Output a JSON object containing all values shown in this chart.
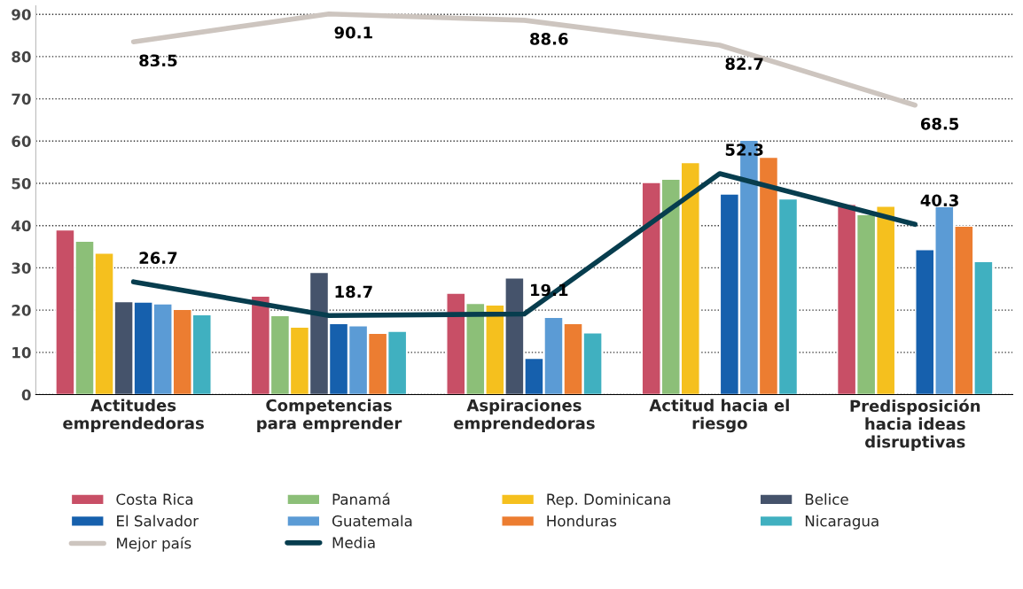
{
  "chart_data": {
    "type": "bar",
    "categories": [
      "Actitudes\nemprendedoras",
      "Competencias\npara emprender",
      "Aspiraciones\nemprendedoras",
      "Actitud hacia el\nriesgo",
      "Predisposición\nhacia ideas\ndisruptivas"
    ],
    "series": [
      {
        "name": "Costa Rica",
        "color": "#c84f66",
        "values": [
          39,
          23.3,
          24,
          50.2,
          45
        ]
      },
      {
        "name": "Panamá",
        "color": "#8cbf78",
        "values": [
          36.3,
          18.7,
          21.6,
          51,
          42.6
        ]
      },
      {
        "name": "Rep. Dominicana",
        "color": "#f5c01e",
        "values": [
          33.5,
          16,
          21.2,
          54.9,
          44.6
        ]
      },
      {
        "name": "Belice",
        "color": "#45536b",
        "values": [
          22,
          28.9,
          27.6,
          null,
          null
        ]
      },
      {
        "name": "El Salvador",
        "color": "#1660ad",
        "values": [
          21.9,
          16.8,
          8.6,
          47.5,
          34.3
        ]
      },
      {
        "name": "Guatemala",
        "color": "#5b9bd5",
        "values": [
          21.5,
          16.3,
          18.3,
          60.2,
          44.5
        ]
      },
      {
        "name": "Honduras",
        "color": "#ec7d31",
        "values": [
          20.2,
          14.5,
          16.8,
          56.2,
          39.9
        ]
      },
      {
        "name": "Nicaragua",
        "color": "#40b0c0",
        "values": [
          18.9,
          15,
          14.6,
          46.3,
          31.5
        ]
      },
      {
        "name": "Mejor país",
        "type": "line",
        "color": "#cdc5bf",
        "values": [
          83.5,
          90.1,
          88.6,
          82.7,
          68.5
        ],
        "data_labels": true
      },
      {
        "name": "Media",
        "type": "line",
        "color": "#073d4e",
        "values": [
          26.7,
          18.7,
          19.1,
          52.3,
          40.3
        ],
        "data_labels": true
      }
    ],
    "ylim": [
      0,
      92
    ],
    "yticks": [
      0,
      10,
      20,
      30,
      40,
      50,
      60,
      70,
      80,
      90
    ],
    "grid": "y",
    "legend": "bottom"
  }
}
